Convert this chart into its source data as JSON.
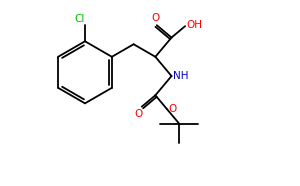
{
  "bg_color": "#ffffff",
  "bond_color": "#000000",
  "cl_color": "#00bb00",
  "o_color": "#ff0000",
  "n_color": "#0000cc",
  "lw": 1.3,
  "figsize": [
    3.0,
    1.86
  ],
  "dpi": 100,
  "xlim": [
    0,
    10
  ],
  "ylim": [
    0,
    6.2
  ]
}
